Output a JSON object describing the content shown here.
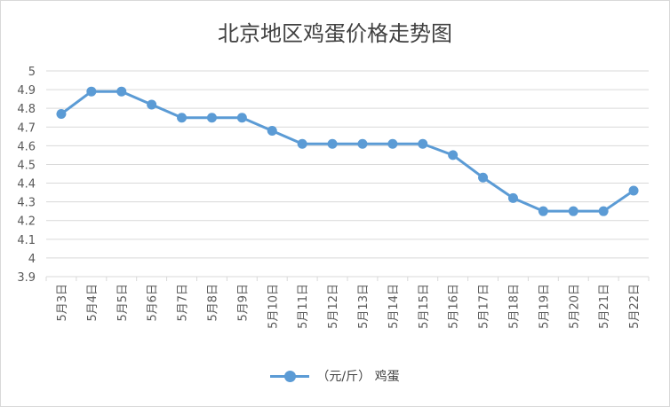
{
  "chart_data": {
    "type": "line",
    "title": "北京地区鸡蛋价格走势图",
    "categories": [
      "5月3日",
      "5月4日",
      "5月5日",
      "5月6日",
      "5月7日",
      "5月8日",
      "5月9日",
      "5月10日",
      "5月11日",
      "5月12日",
      "5月13日",
      "5月14日",
      "5月15日",
      "5月16日",
      "5月17日",
      "5月18日",
      "5月19日",
      "5月20日",
      "5月21日",
      "5月22日"
    ],
    "series": [
      {
        "name": "（元/斤） 鸡蛋",
        "values": [
          4.77,
          4.89,
          4.89,
          4.82,
          4.75,
          4.75,
          4.75,
          4.68,
          4.61,
          4.61,
          4.61,
          4.61,
          4.61,
          4.55,
          4.43,
          4.32,
          4.25,
          4.25,
          4.25,
          4.36
        ]
      }
    ],
    "ylim": [
      3.9,
      5
    ],
    "yticks": [
      "3.9",
      "4",
      "4.1",
      "4.2",
      "4.3",
      "4.4",
      "4.5",
      "4.6",
      "4.7",
      "4.8",
      "4.9",
      "5"
    ],
    "grid": true,
    "legend": "bottom",
    "color": "#5b9bd5"
  }
}
